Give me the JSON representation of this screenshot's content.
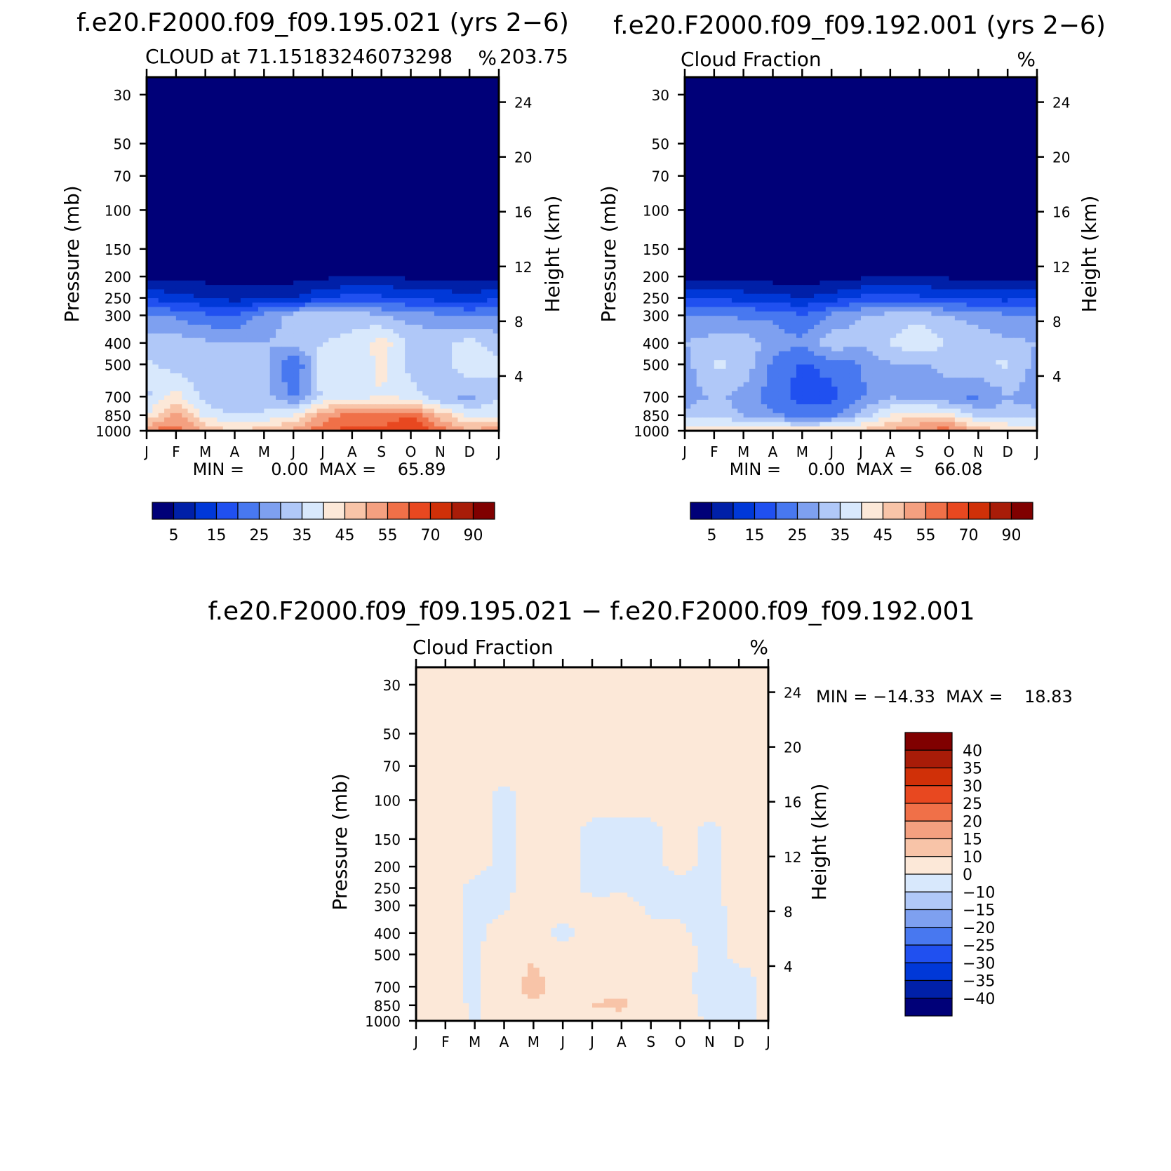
{
  "colors": {
    "seq": [
      "#000078",
      "#0020a8",
      "#0038d8",
      "#2050f0",
      "#4878f0",
      "#7ea0f0",
      "#b0c8f8",
      "#d8e8fc",
      "#fce8d8",
      "#f8c4a8",
      "#f4a080",
      "#f07048",
      "#e84820",
      "#d03008",
      "#a81c08",
      "#800000"
    ],
    "diff": [
      "#000078",
      "#0020a8",
      "#0038d8",
      "#2050f0",
      "#4878f0",
      "#7ea0f0",
      "#b0c8f8",
      "#d8e8fc",
      "#fce8d8",
      "#f8c4a8",
      "#f4a080",
      "#f07048",
      "#e84820",
      "#d03008",
      "#a81c08",
      "#800000"
    ]
  },
  "chart_data": [
    {
      "type": "heatmap",
      "title": "f.e20.F2000.f09_f09.195.021 (yrs 2−6)",
      "subtitle_left": "CLOUD at 71.15183246073298",
      "subtitle_right": "%",
      "subtitle_center": "203.75",
      "ylabel": "Pressure (mb)",
      "ylabel_right": "Height (km)",
      "x_ticks": [
        "J",
        "F",
        "M",
        "A",
        "M",
        "J",
        "J",
        "A",
        "S",
        "O",
        "N",
        "D",
        "J"
      ],
      "y_ticks": [
        "30",
        "50",
        "70",
        "100",
        "150",
        "200",
        "250",
        "300",
        "400",
        "500",
        "700",
        "850",
        "1000"
      ],
      "y_ticks_right": [
        "24",
        "20",
        "16",
        "12",
        "8",
        "4"
      ],
      "stats": "MIN =     0.00  MAX =    65.89",
      "colorbar_labels": [
        "5",
        "15",
        "25",
        "35",
        "45",
        "55",
        "70",
        "90"
      ],
      "levels": [
        0,
        5,
        10,
        15,
        20,
        25,
        30,
        35,
        40,
        45,
        50,
        55,
        60,
        70,
        80,
        90,
        100
      ],
      "grid": {
        "p_levels": [
          1000,
          850,
          700,
          500,
          400,
          300,
          250,
          200,
          150,
          100,
          70,
          50,
          30
        ],
        "months": [
          "J",
          "F",
          "M",
          "A",
          "M",
          "J",
          "J",
          "A",
          "S",
          "O",
          "N",
          "D",
          "J"
        ],
        "values": [
          [
            55,
            58,
            50,
            45,
            48,
            52,
            58,
            62,
            63,
            66,
            58,
            50,
            55
          ],
          [
            40,
            52,
            38,
            35,
            36,
            40,
            52,
            57,
            55,
            60,
            48,
            38,
            40
          ],
          [
            34,
            42,
            33,
            31,
            32,
            24,
            36,
            38,
            40,
            38,
            30,
            29,
            34
          ],
          [
            36,
            33,
            30,
            30,
            33,
            19,
            38,
            36,
            41,
            33,
            32,
            39,
            36
          ],
          [
            32,
            33,
            31,
            30,
            30,
            31,
            35,
            36,
            43,
            34,
            33,
            37,
            32
          ],
          [
            26,
            24,
            21,
            20,
            27,
            32,
            34,
            33,
            30,
            28,
            26,
            24,
            26
          ],
          [
            14,
            12,
            10,
            8,
            9,
            10,
            14,
            17,
            16,
            14,
            13,
            12,
            14
          ],
          [
            4,
            3,
            3,
            2,
            2,
            3,
            4,
            5,
            5,
            4,
            4,
            3,
            4
          ],
          [
            1,
            0,
            0,
            0,
            0,
            0,
            0,
            0,
            0,
            0,
            0,
            0,
            1
          ],
          [
            0,
            0,
            0,
            0,
            0,
            0,
            0,
            0,
            0,
            0,
            0,
            0,
            0
          ],
          [
            0,
            0,
            0,
            0,
            0,
            0,
            0,
            0,
            0,
            0,
            0,
            0,
            0
          ],
          [
            0,
            0,
            0,
            0,
            0,
            0,
            0,
            0,
            0,
            0,
            0,
            0,
            0
          ],
          [
            0,
            0,
            0,
            0,
            0,
            0,
            0,
            0,
            0,
            0,
            0,
            0,
            0
          ]
        ]
      }
    },
    {
      "type": "heatmap",
      "title": "f.e20.F2000.f09_f09.192.001 (yrs 2−6)",
      "subtitle_left": "Cloud Fraction",
      "subtitle_right": "%",
      "ylabel": "Pressure (mb)",
      "ylabel_right": "Height (km)",
      "x_ticks": [
        "J",
        "F",
        "M",
        "A",
        "M",
        "J",
        "J",
        "A",
        "S",
        "O",
        "N",
        "D",
        "J"
      ],
      "y_ticks": [
        "30",
        "50",
        "70",
        "100",
        "150",
        "200",
        "250",
        "300",
        "400",
        "500",
        "700",
        "850",
        "1000"
      ],
      "y_ticks_right": [
        "24",
        "20",
        "16",
        "12",
        "8",
        "4"
      ],
      "stats": "MIN =     0.00  MAX =    66.08",
      "colorbar_labels": [
        "5",
        "15",
        "25",
        "35",
        "45",
        "55",
        "70",
        "90"
      ],
      "levels": [
        0,
        5,
        10,
        15,
        20,
        25,
        30,
        35,
        40,
        45,
        50,
        55,
        60,
        70,
        80,
        90,
        100
      ],
      "grid": {
        "p_levels": [
          1000,
          850,
          700,
          500,
          400,
          300,
          250,
          200,
          150,
          100,
          70,
          50,
          30
        ],
        "months": [
          "J",
          "F",
          "M",
          "A",
          "M",
          "J",
          "J",
          "A",
          "S",
          "O",
          "N",
          "D",
          "J"
        ],
        "values": [
          [
            44,
            45,
            44,
            43,
            43,
            44,
            46,
            50,
            55,
            58,
            48,
            46,
            44
          ],
          [
            32,
            33,
            30,
            26,
            23,
            24,
            32,
            40,
            44,
            42,
            33,
            32,
            32
          ],
          [
            27,
            31,
            28,
            22,
            18,
            18,
            24,
            30,
            27,
            25,
            24,
            30,
            27
          ],
          [
            28,
            36,
            34,
            24,
            19,
            22,
            25,
            30,
            29,
            33,
            34,
            36,
            28
          ],
          [
            30,
            32,
            33,
            28,
            26,
            34,
            31,
            35,
            41,
            34,
            33,
            31,
            30
          ],
          [
            26,
            25,
            24,
            24,
            20,
            26,
            30,
            32,
            33,
            30,
            28,
            26,
            26
          ],
          [
            15,
            14,
            13,
            12,
            10,
            12,
            16,
            17,
            16,
            15,
            14,
            13,
            15
          ],
          [
            3,
            3,
            3,
            2,
            2,
            3,
            4,
            5,
            5,
            4,
            4,
            3,
            3
          ],
          [
            0,
            0,
            0,
            0,
            0,
            0,
            0,
            0,
            0,
            0,
            0,
            0,
            0
          ],
          [
            0,
            0,
            0,
            0,
            0,
            0,
            0,
            0,
            0,
            0,
            0,
            0,
            0
          ],
          [
            0,
            0,
            0,
            0,
            0,
            0,
            0,
            0,
            0,
            0,
            0,
            0,
            0
          ],
          [
            0,
            0,
            0,
            0,
            0,
            0,
            0,
            0,
            0,
            0,
            0,
            0,
            0
          ],
          [
            0,
            0,
            0,
            0,
            0,
            0,
            0,
            0,
            0,
            0,
            0,
            0,
            0
          ]
        ]
      }
    },
    {
      "type": "heatmap",
      "title": "f.e20.F2000.f09_f09.195.021 − f.e20.F2000.f09_f09.192.001",
      "subtitle_left": "Cloud Fraction",
      "subtitle_right": "%",
      "ylabel": "Pressure (mb)",
      "ylabel_right": "Height (km)",
      "x_ticks": [
        "J",
        "F",
        "M",
        "A",
        "M",
        "J",
        "J",
        "A",
        "S",
        "O",
        "N",
        "D",
        "J"
      ],
      "y_ticks": [
        "30",
        "50",
        "70",
        "100",
        "150",
        "200",
        "250",
        "300",
        "400",
        "500",
        "700",
        "850",
        "1000"
      ],
      "y_ticks_right": [
        "24",
        "20",
        "16",
        "12",
        "8",
        "4"
      ],
      "stats": "MIN = −14.33  MAX =    18.83",
      "colorbar_labels": [
        "40",
        "35",
        "30",
        "25",
        "20",
        "15",
        "10",
        "0",
        "−10",
        "−15",
        "−20",
        "−25",
        "−30",
        "−35",
        "−40"
      ],
      "levels": [
        -100,
        -40,
        -35,
        -30,
        -25,
        -20,
        -15,
        -10,
        0,
        10,
        15,
        20,
        25,
        30,
        35,
        40,
        100
      ],
      "grid": {
        "p_levels": [
          1000,
          850,
          700,
          500,
          400,
          300,
          250,
          200,
          150,
          100,
          70,
          50,
          30
        ],
        "months": [
          "J",
          "F",
          "M",
          "A",
          "M",
          "J",
          "J",
          "A",
          "S",
          "O",
          "N",
          "D",
          "J"
        ],
        "values": [
          [
            2,
            3,
            -1,
            2,
            3,
            3,
            5,
            6,
            2,
            3,
            -1,
            -2,
            2
          ],
          [
            2,
            3,
            -1,
            5,
            8,
            9,
            10,
            12,
            4,
            3,
            -2,
            -3,
            2
          ],
          [
            1,
            2,
            -2,
            5,
            14,
            4,
            6,
            8,
            3,
            1,
            -2,
            -2,
            1
          ],
          [
            1,
            1,
            -1,
            3,
            9,
            3,
            10,
            8,
            4,
            2,
            -1,
            1,
            1
          ],
          [
            1,
            1,
            -1,
            2,
            3,
            -2,
            2,
            3,
            1,
            1,
            -2,
            1,
            1
          ],
          [
            1,
            1,
            -1,
            -1,
            5,
            4,
            1,
            2,
            -1,
            -1,
            -1,
            1,
            1
          ],
          [
            1,
            2,
            -1,
            -1,
            1,
            1,
            -1,
            -1,
            -1,
            -1,
            -1,
            1,
            1
          ],
          [
            1,
            1,
            1,
            -1,
            1,
            1,
            -1,
            -1,
            -1,
            1,
            -1,
            1,
            1
          ],
          [
            1,
            1,
            1,
            -1,
            1,
            1,
            -1,
            -1,
            -1,
            1,
            -1,
            1,
            1
          ],
          [
            1,
            1,
            1,
            -1,
            1,
            1,
            1,
            1,
            1,
            1,
            1,
            1,
            1
          ],
          [
            1,
            1,
            1,
            1,
            1,
            1,
            1,
            1,
            1,
            1,
            1,
            1,
            1
          ],
          [
            1,
            1,
            1,
            1,
            1,
            1,
            1,
            1,
            1,
            1,
            1,
            1,
            1
          ],
          [
            1,
            1,
            1,
            1,
            1,
            1,
            1,
            1,
            1,
            1,
            1,
            1,
            1
          ]
        ]
      }
    }
  ]
}
